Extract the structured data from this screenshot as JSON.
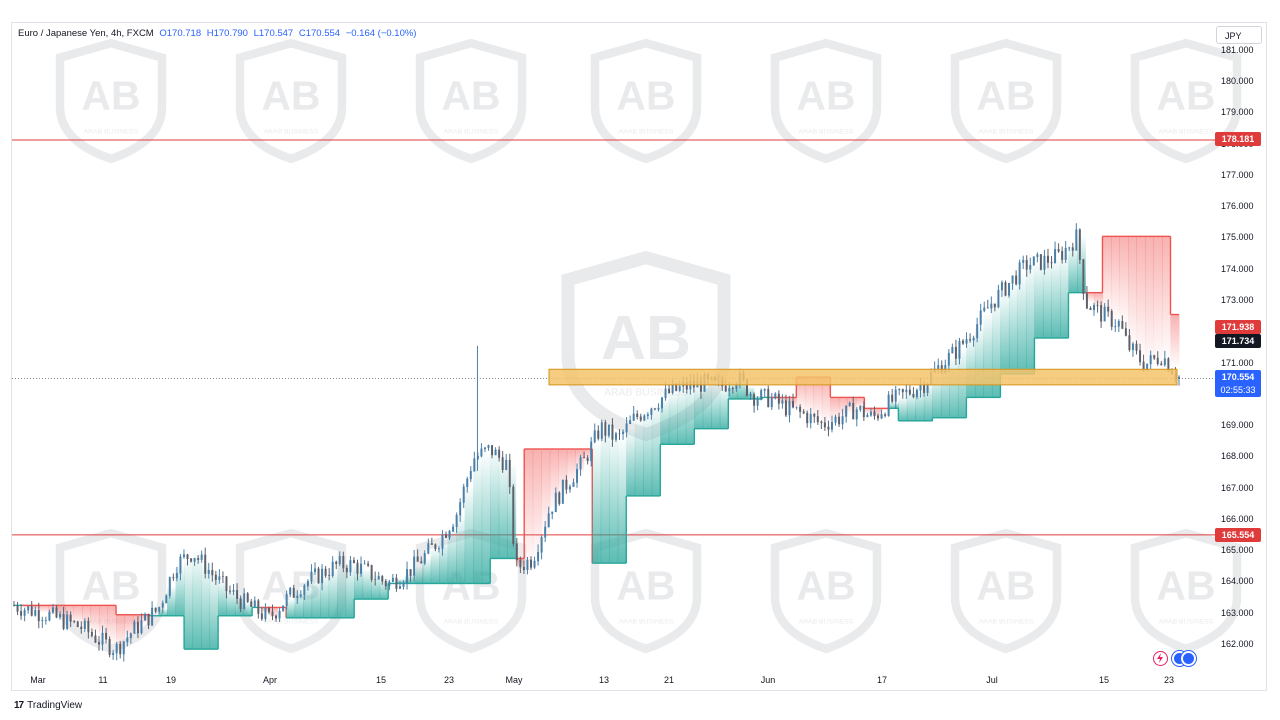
{
  "header": {
    "symbol": "Euro / Japanese Yen, 4h, FXCM",
    "open": "O170.718",
    "high": "H170.790",
    "low": "L170.547",
    "close": "C170.554",
    "change": "−0.164 (−0.10%)"
  },
  "currency": "JPY",
  "footer": {
    "brand": "TradingView",
    "logo": "17"
  },
  "watermark_text": "ARAB BUSINESS",
  "price_labels": {
    "resistance_top": "178.181",
    "ichimoku_red": "171.938",
    "black": "171.734",
    "current": "170.554",
    "countdown": "02:55:33",
    "support": "165.554"
  },
  "colors": {
    "up_candle": "#5d606b",
    "support_line": "#e03b3b",
    "zone": "#f5c36b",
    "zone_border": "#d3931c",
    "bull_fill": "#26a69a",
    "bear_fill": "#ef5350",
    "current_badge": "#2962ff"
  },
  "icons": [
    "lightning-icon",
    "globe-icon"
  ],
  "chart_data": {
    "type": "candlestick",
    "y_axis_ticks": [
      "181.000",
      "180.000",
      "179.000",
      "178.000",
      "177.000",
      "176.000",
      "175.000",
      "174.000",
      "173.000",
      "172.000",
      "171.000",
      "170.000",
      "169.000",
      "168.000",
      "167.000",
      "166.000",
      "165.000",
      "164.000",
      "163.000",
      "162.000"
    ],
    "y_axis_range": [
      161.2,
      182.1
    ],
    "x_axis_ticks": [
      "Mar",
      "11",
      "19",
      "Apr",
      "15",
      "23",
      "May",
      "13",
      "21",
      "Jun",
      "17",
      "Jul",
      "15",
      "23"
    ],
    "horizontal_lines": [
      178.181,
      165.554
    ],
    "zone": [
      170.35,
      170.85
    ],
    "current_price": 170.554,
    "close_path": [
      [
        0,
        163.3
      ],
      [
        4,
        163.0
      ],
      [
        8,
        162.6
      ],
      [
        10,
        162.2
      ],
      [
        12,
        161.9
      ],
      [
        14,
        162.5
      ],
      [
        17,
        163.2
      ],
      [
        19,
        164.6
      ],
      [
        21,
        165.0
      ],
      [
        23,
        164.4
      ],
      [
        25,
        163.8
      ],
      [
        27,
        163.4
      ],
      [
        30,
        162.9
      ],
      [
        32,
        163.5
      ],
      [
        34,
        164.0
      ],
      [
        36,
        164.3
      ],
      [
        38,
        164.6
      ],
      [
        40,
        164.6
      ],
      [
        42,
        164.3
      ],
      [
        44,
        164.0
      ],
      [
        46,
        164.3
      ],
      [
        48,
        164.8
      ],
      [
        50,
        165.4
      ],
      [
        52,
        166.2
      ],
      [
        54,
        168.0
      ],
      [
        56,
        168.3
      ],
      [
        58,
        167.8
      ],
      [
        59,
        164.5
      ],
      [
        61,
        164.8
      ],
      [
        63,
        166.4
      ],
      [
        65,
        167.2
      ],
      [
        67,
        167.9
      ],
      [
        69,
        169.0
      ],
      [
        71,
        168.6
      ],
      [
        73,
        169.3
      ],
      [
        75,
        169.7
      ],
      [
        77,
        170.1
      ],
      [
        79,
        170.3
      ],
      [
        81,
        170.4
      ],
      [
        83,
        170.3
      ],
      [
        85,
        170.6
      ],
      [
        87,
        170.0
      ],
      [
        89,
        169.9
      ],
      [
        91,
        169.6
      ],
      [
        93,
        169.4
      ],
      [
        95,
        169.1
      ],
      [
        97,
        169.3
      ],
      [
        99,
        169.6
      ],
      [
        101,
        169.3
      ],
      [
        103,
        169.8
      ],
      [
        105,
        170.1
      ],
      [
        107,
        170.4
      ],
      [
        109,
        171.0
      ],
      [
        111,
        171.5
      ],
      [
        113,
        172.2
      ],
      [
        115,
        173.0
      ],
      [
        117,
        173.6
      ],
      [
        119,
        174.2
      ],
      [
        121,
        174.3
      ],
      [
        123,
        174.5
      ],
      [
        125,
        175.1
      ],
      [
        126,
        173.0
      ],
      [
        128,
        172.6
      ],
      [
        130,
        172.3
      ],
      [
        131,
        171.6
      ],
      [
        133,
        171.0
      ],
      [
        135,
        171.3
      ],
      [
        137,
        170.6
      ]
    ]
  }
}
